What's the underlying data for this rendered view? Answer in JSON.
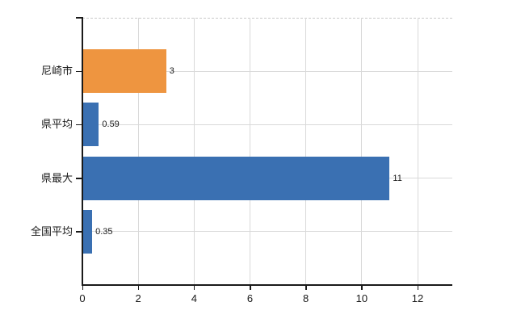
{
  "chart_data": {
    "type": "bar",
    "orientation": "horizontal",
    "categories": [
      "尼崎市",
      "県平均",
      "県最大",
      "全国平均"
    ],
    "values": [
      3,
      0.59,
      11,
      0.35
    ],
    "value_labels": [
      "3",
      "0.59",
      "11",
      "0.35"
    ],
    "bar_colors": [
      "#EE9540",
      "#3A70B2",
      "#3A70B2",
      "#3A70B2"
    ],
    "xtick_labels": [
      "0",
      "2",
      "4",
      "6",
      "8",
      "10",
      "12"
    ],
    "xtick_values": [
      0,
      2,
      4,
      6,
      8,
      10,
      12
    ],
    "xlim": [
      0,
      13.25
    ],
    "grid": true,
    "legend": false,
    "title": "",
    "background_color": "#ffffff",
    "grid_color": "#d9d9d9",
    "axis_color": "#1a1a1a",
    "accent_orange": "#EE9540",
    "accent_blue": "#3A70B2"
  }
}
